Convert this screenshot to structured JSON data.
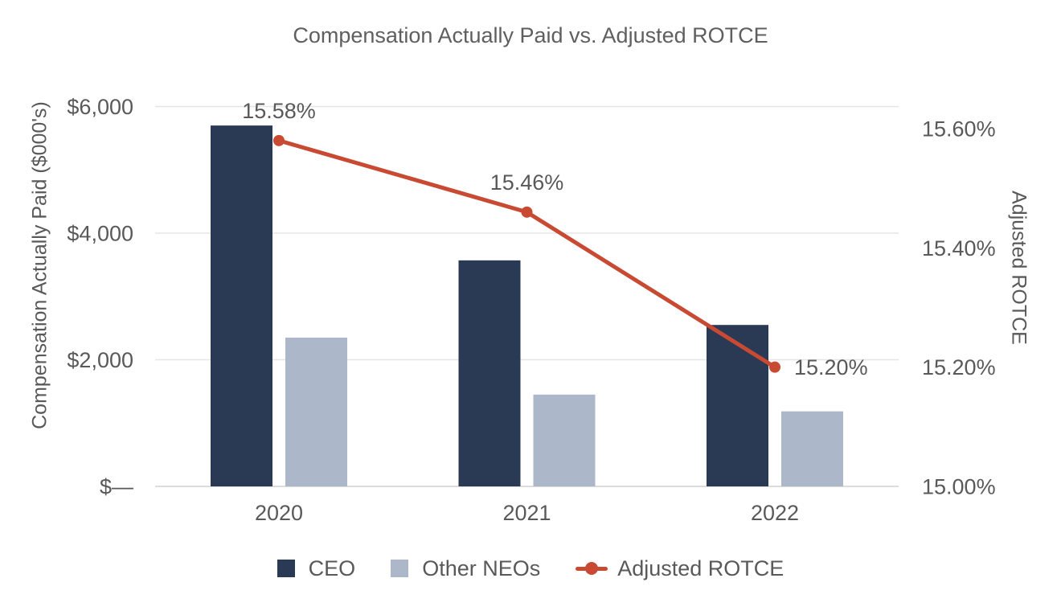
{
  "colors": {
    "ceo_bar": "#2B3A54",
    "other_neos_bar": "#ACB8C9",
    "rotce_line": "#C94A33",
    "text": "#595959",
    "title_text": "#5F5F5F",
    "gridline": "#E6E6E6",
    "axis_line": "#DCDCDC",
    "background": "#FFFFFF"
  },
  "chart_data": {
    "type": "combo-bar-line",
    "title": "Compensation Actually Paid vs. Adjusted ROTCE",
    "categories": [
      "2020",
      "2021",
      "2022"
    ],
    "bar_series": [
      {
        "name": "CEO",
        "color_key": "ceo_bar",
        "values": [
          5700,
          3570,
          2550
        ]
      },
      {
        "name": "Other NEOs",
        "color_key": "other_neos_bar",
        "values": [
          2350,
          1450,
          1185
        ]
      }
    ],
    "line_series": {
      "name": "Adjusted ROTCE",
      "color_key": "rotce_line",
      "values": [
        15.58,
        15.46,
        15.2
      ],
      "data_labels": [
        "15.58%",
        "15.46%",
        "15.20%"
      ],
      "label_positions": [
        "above",
        "above",
        "right"
      ]
    },
    "left_axis": {
      "title": "Compensation Actually Paid ($000's)",
      "tick_labels": [
        "$6,000",
        "$4,000",
        "$2,000",
        "$—"
      ],
      "tick_values": [
        6000,
        4000,
        2000,
        0
      ],
      "ylim": [
        0,
        6000
      ]
    },
    "right_axis": {
      "title": "Adjusted ROTCE",
      "tick_labels": [
        "15.60%",
        "15.40%",
        "15.20%",
        "15.00%"
      ],
      "tick_values": [
        15.6,
        15.4,
        15.2,
        15.0
      ],
      "ylim": [
        15.0,
        15.6
      ]
    },
    "grid": true,
    "legend_position": "bottom"
  }
}
